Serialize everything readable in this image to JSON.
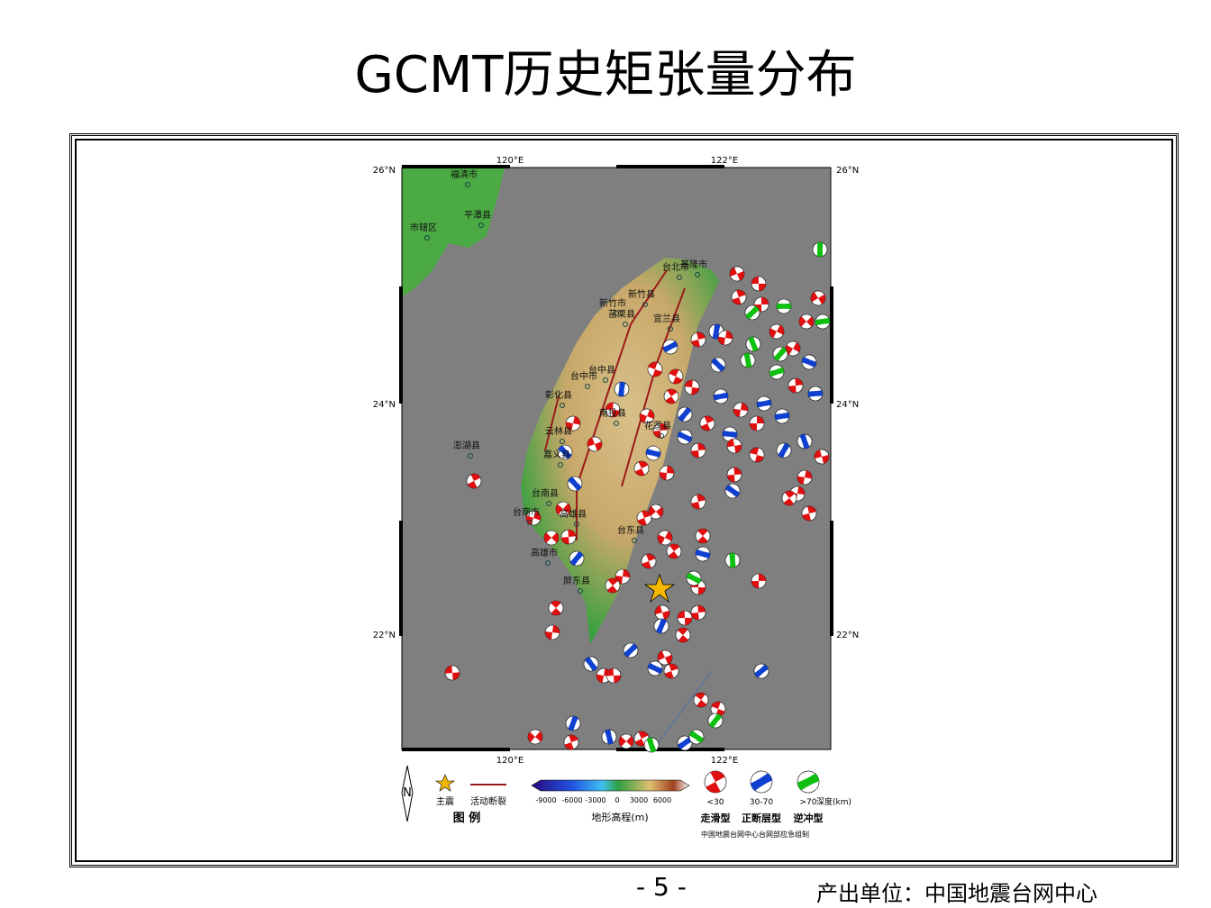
{
  "title": "GCMT历史矩张量分布",
  "map": {
    "lon_labels": [
      "120°E",
      "122°E"
    ],
    "lat_labels": [
      "26°N",
      "24°N",
      "22°N"
    ],
    "places": [
      "福清市",
      "平潭县",
      "市辖区",
      "台北市",
      "基隆市",
      "新竹县",
      "新竹市",
      "宜兰县",
      "苗栗县",
      "台中市",
      "台中县",
      "彰化县",
      "南投县",
      "花莲县",
      "云林县",
      "嘉义县",
      "澎湖县",
      "台南县",
      "台南市",
      "高雄县",
      "台东县",
      "高雄市",
      "屏东县"
    ]
  },
  "legend": {
    "title": "图  例",
    "mainshock": "主震",
    "fault": "活动断裂",
    "colorbar_ticks": [
      -9000,
      -6000,
      -3000,
      0,
      3000,
      6000
    ],
    "elevation": "地形高程(m)",
    "depths": [
      "<30",
      "30-70",
      ">70"
    ],
    "depth_unit": "深度(km)",
    "types": [
      "走滑型",
      "正断层型",
      "逆冲型"
    ],
    "maker": "中国地震台网中心台网部应急组制"
  },
  "footer": {
    "page": "- 5 -",
    "credit": "产出单位：中国地震台网中心"
  }
}
